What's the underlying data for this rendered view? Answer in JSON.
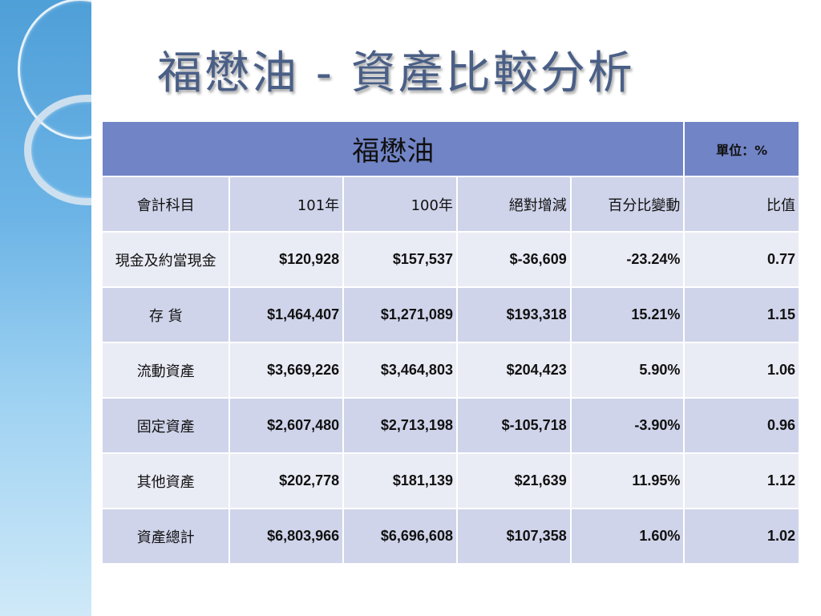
{
  "slide": {
    "title": "福懋油 - 資產比較分析"
  },
  "table": {
    "main_title": "福懋油",
    "unit": "單位：%",
    "columns": [
      "會計科目",
      "101年",
      "100年",
      "絕對增減",
      "百分比變動",
      "比值"
    ],
    "rows": [
      [
        "現金及約當現金",
        "$120,928",
        "$157,537",
        "$-36,609",
        "-23.24%",
        "0.77"
      ],
      [
        "存 貨",
        "$1,464,407",
        "$1,271,089",
        "$193,318",
        "15.21%",
        "1.15"
      ],
      [
        "流動資產",
        "$3,669,226",
        "$3,464,803",
        "$204,423",
        "5.90%",
        "1.06"
      ],
      [
        "固定資產",
        "$2,607,480",
        "$2,713,198",
        "$-105,718",
        "-3.90%",
        "0.96"
      ],
      [
        "其他資產",
        "$202,778",
        "$181,139",
        "$21,639",
        "11.95%",
        "1.12"
      ],
      [
        "資產總計",
        "$6,803,966",
        "$6,696,608",
        "$107,358",
        "1.60%",
        "1.02"
      ]
    ]
  },
  "colors": {
    "header_bg": "#7184c6",
    "row_light": "#e9ebf5",
    "row_dark": "#cfd4ea",
    "title": "#4a5f86"
  }
}
